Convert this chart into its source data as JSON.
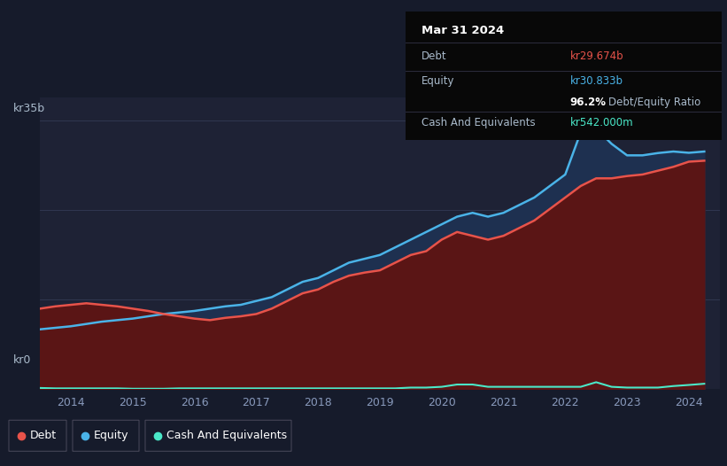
{
  "background_color": "#161b2b",
  "plot_bg_color": "#1e2235",
  "grid_color": "#333a55",
  "ylabel_text": "kr35b",
  "y0_text": "kr0",
  "ylim": [
    0,
    38
  ],
  "xlim": [
    2013.5,
    2024.5
  ],
  "debt_color": "#e8534a",
  "equity_color": "#4ab3e8",
  "cash_color": "#4ae8c8",
  "debt_fill_color": "#5a1515",
  "equity_fill_color": "#1e3050",
  "tooltip_bg": "#080808",
  "tooltip_title": "Mar 31 2024",
  "tooltip_debt_label": "Debt",
  "tooltip_debt_value": "kr29.674b",
  "tooltip_equity_label": "Equity",
  "tooltip_equity_value": "kr30.833b",
  "tooltip_ratio_value": "96.2%",
  "tooltip_ratio_label": "Debt/Equity Ratio",
  "tooltip_cash_label": "Cash And Equivalents",
  "tooltip_cash_value": "kr542.000m",
  "years": [
    2013.5,
    2013.75,
    2014.0,
    2014.25,
    2014.5,
    2014.75,
    2015.0,
    2015.25,
    2015.5,
    2015.75,
    2016.0,
    2016.25,
    2016.5,
    2016.75,
    2017.0,
    2017.25,
    2017.5,
    2017.75,
    2018.0,
    2018.25,
    2018.5,
    2018.75,
    2019.0,
    2019.25,
    2019.5,
    2019.75,
    2020.0,
    2020.25,
    2020.5,
    2020.75,
    2021.0,
    2021.25,
    2021.5,
    2021.75,
    2022.0,
    2022.25,
    2022.5,
    2022.75,
    2023.0,
    2023.25,
    2023.5,
    2023.75,
    2024.0,
    2024.25
  ],
  "debt_values": [
    10.5,
    10.8,
    11.0,
    11.2,
    11.0,
    10.8,
    10.5,
    10.2,
    9.8,
    9.5,
    9.2,
    9.0,
    9.3,
    9.5,
    9.8,
    10.5,
    11.5,
    12.5,
    13.0,
    14.0,
    14.8,
    15.2,
    15.5,
    16.5,
    17.5,
    18.0,
    19.5,
    20.5,
    20.0,
    19.5,
    20.0,
    21.0,
    22.0,
    23.5,
    25.0,
    26.5,
    27.5,
    27.5,
    27.8,
    28.0,
    28.5,
    29.0,
    29.674,
    29.8
  ],
  "equity_values": [
    7.8,
    8.0,
    8.2,
    8.5,
    8.8,
    9.0,
    9.2,
    9.5,
    9.8,
    10.0,
    10.2,
    10.5,
    10.8,
    11.0,
    11.5,
    12.0,
    13.0,
    14.0,
    14.5,
    15.5,
    16.5,
    17.0,
    17.5,
    18.5,
    19.5,
    20.5,
    21.5,
    22.5,
    23.0,
    22.5,
    23.0,
    24.0,
    25.0,
    26.5,
    28.0,
    33.5,
    34.0,
    32.0,
    30.5,
    30.5,
    30.8,
    31.0,
    30.833,
    31.0
  ],
  "cash_values": [
    0.15,
    0.1,
    0.1,
    0.1,
    0.1,
    0.1,
    0.05,
    0.05,
    0.05,
    0.1,
    0.1,
    0.1,
    0.1,
    0.1,
    0.1,
    0.1,
    0.1,
    0.1,
    0.1,
    0.1,
    0.1,
    0.1,
    0.1,
    0.1,
    0.2,
    0.2,
    0.3,
    0.6,
    0.6,
    0.3,
    0.3,
    0.3,
    0.3,
    0.3,
    0.3,
    0.3,
    0.9,
    0.3,
    0.2,
    0.2,
    0.2,
    0.4,
    0.542,
    0.7
  ]
}
